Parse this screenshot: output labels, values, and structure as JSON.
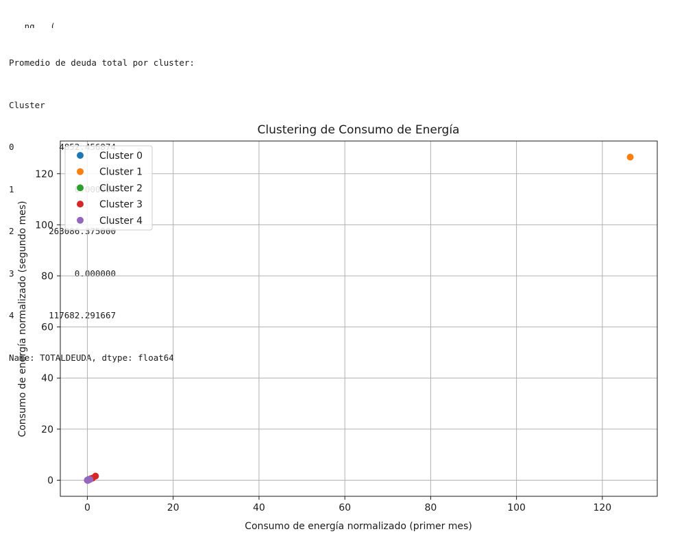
{
  "console": {
    "clipped_line": "...ng...(",
    "heading": "Promedio de deuda total por cluster:",
    "index_name": "Cluster",
    "rows": [
      {
        "index": "0",
        "value": "4852.456874"
      },
      {
        "index": "1",
        "value": "0.000000"
      },
      {
        "index": "2",
        "value": "263086.375000"
      },
      {
        "index": "3",
        "value": "0.000000"
      },
      {
        "index": "4",
        "value": "117682.291667"
      }
    ],
    "footer": "Name: TOTALDEUDA, dtype: float64"
  },
  "chart_data": {
    "type": "scatter",
    "title": "Clustering de Consumo de Energía",
    "xlabel": "Consumo de energía normalizado (primer mes)",
    "ylabel": "Consumo de energía normalizado (segundo mes)",
    "xlim": [
      -6.3,
      132.8
    ],
    "ylim": [
      -6.3,
      132.8
    ],
    "xticks": [
      0,
      20,
      40,
      60,
      80,
      100,
      120
    ],
    "yticks": [
      0,
      20,
      40,
      60,
      80,
      100,
      120
    ],
    "grid": true,
    "legend_position": "top-left",
    "series": [
      {
        "name": "Cluster 0",
        "color": "#1f77b4",
        "points": [
          [
            0,
            0
          ],
          [
            0.1,
            0.1
          ],
          [
            0.2,
            0
          ]
        ]
      },
      {
        "name": "Cluster 1",
        "color": "#ff7f0e",
        "points": [
          [
            126.5,
            126.5
          ]
        ]
      },
      {
        "name": "Cluster 2",
        "color": "#2ca02c",
        "points": [
          [
            0.3,
            0.3
          ]
        ]
      },
      {
        "name": "Cluster 3",
        "color": "#d62728",
        "points": [
          [
            1.9,
            1.6
          ],
          [
            1.2,
            0.8
          ],
          [
            0.8,
            0.6
          ]
        ]
      },
      {
        "name": "Cluster 4",
        "color": "#9467bd",
        "points": [
          [
            0,
            0
          ],
          [
            0.2,
            0.1
          ],
          [
            0.4,
            0.2
          ],
          [
            0.1,
            -0.1
          ],
          [
            0.6,
            0.3
          ]
        ]
      }
    ]
  }
}
